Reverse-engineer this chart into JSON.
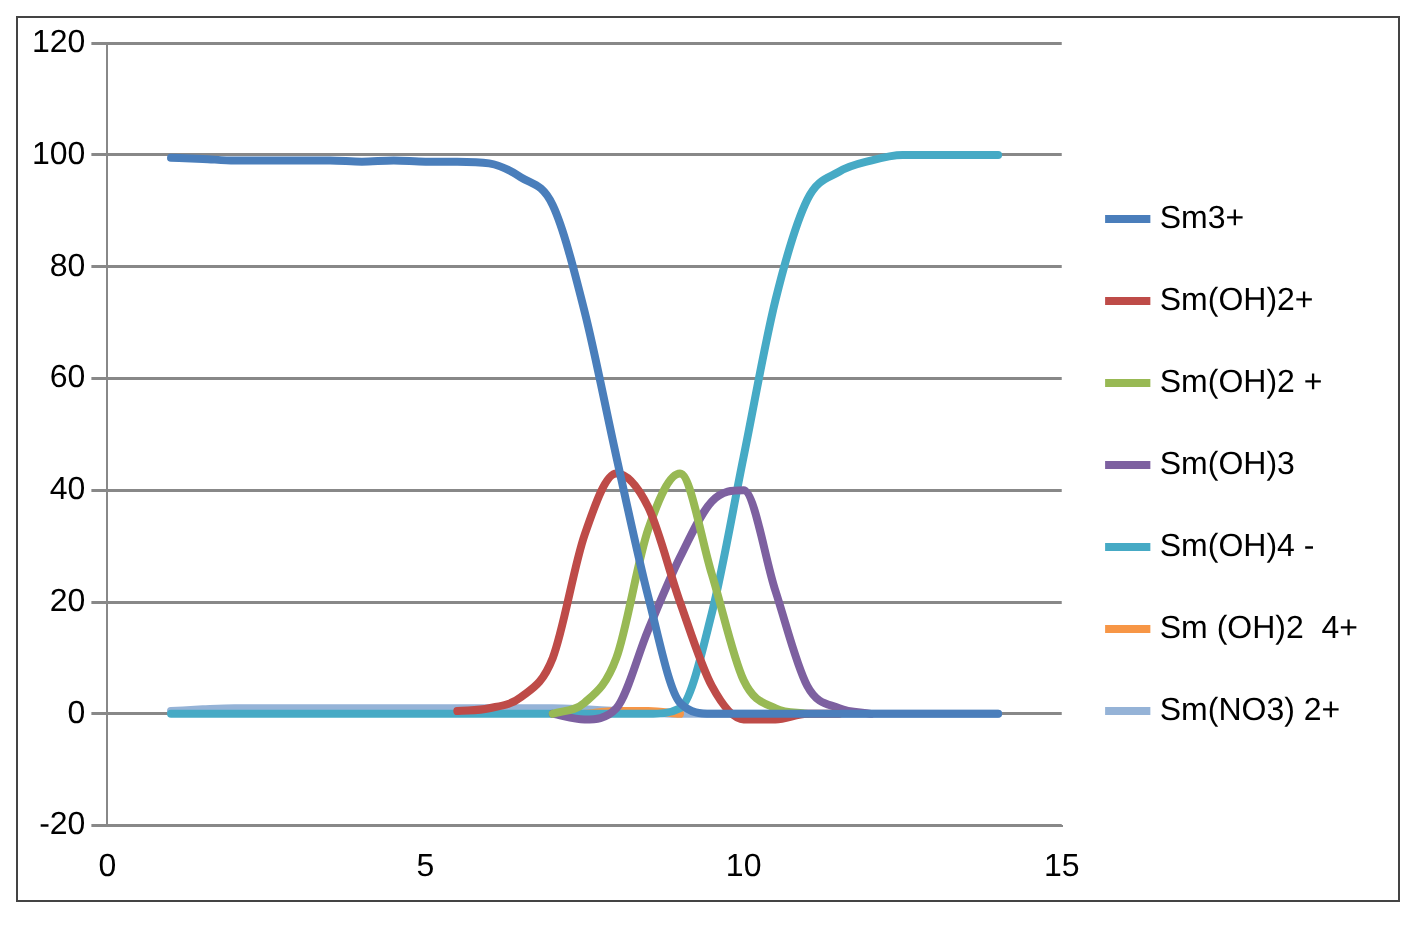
{
  "chart_data": {
    "type": "line",
    "x": [
      1,
      1.5,
      2,
      2.5,
      3,
      3.5,
      4,
      4.5,
      5,
      5.5,
      6,
      6.5,
      7,
      7.5,
      8,
      8.5,
      9,
      9.5,
      10,
      10.5,
      11,
      11.5,
      12,
      12.5,
      13,
      13.5,
      14
    ],
    "series": [
      {
        "name": "Sm3+",
        "color": "#4a7ebb",
        "values": [
          99.5,
          99.3,
          99,
          99,
          99,
          99,
          98.8,
          99,
          98.8,
          98.8,
          98.5,
          96,
          91,
          72,
          46,
          21,
          2,
          0,
          0,
          0,
          0,
          0,
          0,
          0,
          0,
          0,
          0
        ]
      },
      {
        "name": "Sm(OH)2+",
        "color": "#be4b48",
        "values": [
          null,
          null,
          null,
          null,
          null,
          null,
          null,
          null,
          null,
          0.5,
          1,
          3,
          10,
          32,
          43,
          37,
          20,
          5,
          -1,
          -1,
          0,
          0,
          null,
          null,
          null,
          null,
          null
        ]
      },
      {
        "name": "Sm(OH)2 +",
        "color": "#98b954",
        "values": [
          null,
          null,
          null,
          null,
          null,
          null,
          null,
          null,
          null,
          null,
          null,
          null,
          0,
          2,
          10,
          33,
          43,
          25,
          6,
          1,
          0,
          null,
          null,
          null,
          null,
          null,
          null
        ]
      },
      {
        "name": "Sm(OH)3",
        "color": "#7d60a0",
        "values": [
          null,
          null,
          null,
          null,
          null,
          null,
          null,
          null,
          null,
          null,
          null,
          null,
          0,
          -1,
          1,
          15,
          28,
          38,
          40,
          22,
          5,
          1,
          0,
          null,
          null,
          null,
          null
        ]
      },
      {
        "name": "Sm(OH)4 -",
        "color": "#46aac5",
        "values": [
          0,
          0,
          0,
          0,
          0,
          0,
          0,
          0,
          0,
          0,
          0,
          0,
          0,
          0,
          0,
          0,
          1,
          18,
          46,
          74,
          92,
          97,
          99,
          100,
          100,
          100,
          100
        ]
      },
      {
        "name": "Sm (OH)2  4+",
        "color": "#f79646",
        "values": [
          null,
          null,
          null,
          null,
          null,
          null,
          null,
          null,
          null,
          null,
          null,
          null,
          null,
          0,
          0.5,
          0.5,
          0,
          null,
          null,
          null,
          null,
          null,
          null,
          null,
          null,
          null,
          null
        ]
      },
      {
        "name": "Sm(NO3) 2+",
        "color": "#95b3d7",
        "values": [
          0.5,
          0.8,
          1,
          1,
          1,
          1,
          1,
          1,
          1,
          1,
          1,
          1,
          1,
          0.8,
          0.5,
          0.3,
          0,
          0,
          0,
          0,
          0,
          0,
          0,
          0,
          0,
          0,
          0
        ]
      }
    ],
    "xlim": [
      0,
      15
    ],
    "xticks": [
      0,
      5,
      10,
      15
    ],
    "ylim": [
      -20,
      120
    ],
    "yticks": [
      -20,
      0,
      20,
      40,
      60,
      80,
      100,
      120
    ],
    "grid": "y",
    "legend": "right",
    "marker": "none",
    "line_style": "solid"
  }
}
